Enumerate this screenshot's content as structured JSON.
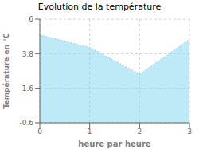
{
  "chart_data": {
    "type": "area",
    "title": "Evolution de la température",
    "xlabel": "heure par heure",
    "ylabel": "Température en °C",
    "x": [
      0,
      1,
      2,
      3
    ],
    "values": [
      5.0,
      4.2,
      2.5,
      4.7
    ],
    "xlim": [
      0,
      3
    ],
    "ylim": [
      -0.6,
      6.0
    ],
    "xticks": [
      0,
      1,
      2,
      3
    ],
    "yticks": [
      -0.6,
      1.6,
      3.8,
      6.0
    ],
    "color": "#7dd4ed",
    "line_style": "dotted",
    "grid": true
  }
}
